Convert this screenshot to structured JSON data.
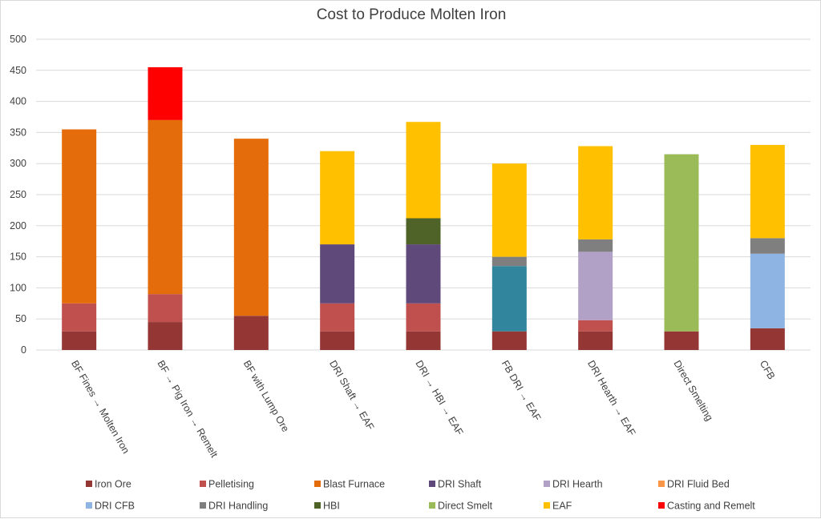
{
  "chart_data": {
    "type": "bar",
    "stacked": true,
    "title": "Cost to Produce Molten Iron",
    "xlabel": "",
    "ylabel": "",
    "ylim": [
      0,
      500
    ],
    "yticks": [
      0,
      50,
      100,
      150,
      200,
      250,
      300,
      350,
      400,
      450,
      500
    ],
    "grid": true,
    "legend_position": "bottom",
    "categories": [
      "BF Fines → Molten Iron",
      "BF → Pig Iron → Remelt",
      "BF with Lump Ore",
      "DRI Shaft → EAF",
      "DRI → HBI → EAF",
      "FB DRI → EAF",
      "DRI Hearth → EAF",
      "Direct Smelting",
      "CFB"
    ],
    "series": [
      {
        "name": "Iron Ore",
        "color": "#943634",
        "values": [
          30,
          45,
          55,
          30,
          30,
          30,
          30,
          30,
          35
        ]
      },
      {
        "name": "Pelletising",
        "color": "#C0504D",
        "values": [
          45,
          45,
          0,
          45,
          45,
          0,
          18,
          0,
          0
        ]
      },
      {
        "name": "Blast Furnace",
        "color": "#E46C0A",
        "values": [
          280,
          280,
          285,
          0,
          0,
          0,
          0,
          0,
          0
        ]
      },
      {
        "name": "DRI Shaft",
        "color": "#5F497A",
        "values": [
          0,
          0,
          0,
          95,
          95,
          0,
          0,
          0,
          0
        ]
      },
      {
        "name": "DRI Hearth",
        "color": "#B2A1C7",
        "values": [
          0,
          0,
          0,
          0,
          0,
          0,
          110,
          0,
          0
        ]
      },
      {
        "name": "DRI Fluid Bed",
        "color": "#31859C",
        "values": [
          0,
          0,
          0,
          0,
          0,
          105,
          0,
          0,
          0
        ]
      },
      {
        "name": "DRI CFB",
        "color": "#8EB4E3",
        "values": [
          0,
          0,
          0,
          0,
          0,
          0,
          0,
          0,
          120
        ]
      },
      {
        "name": "DRI Handling",
        "color": "#7F7F7F",
        "values": [
          0,
          0,
          0,
          0,
          0,
          15,
          20,
          0,
          25
        ]
      },
      {
        "name": "HBI",
        "color": "#4F6228",
        "values": [
          0,
          0,
          0,
          0,
          42,
          0,
          0,
          0,
          0
        ]
      },
      {
        "name": "Direct Smelt",
        "color": "#9BBB59",
        "values": [
          0,
          0,
          0,
          0,
          0,
          0,
          0,
          285,
          0
        ]
      },
      {
        "name": "EAF",
        "color": "#FFC000",
        "values": [
          0,
          0,
          0,
          150,
          155,
          150,
          150,
          0,
          150
        ]
      },
      {
        "name": "Casting and Remelt",
        "color": "#FF0000",
        "values": [
          0,
          85,
          0,
          0,
          0,
          0,
          0,
          0,
          0
        ]
      }
    ],
    "legend_display": {
      "colors": [
        "#943634",
        "#C0504D",
        "#E46C0A",
        "#5F497A",
        "#B2A1C7",
        "#F79646",
        "#8EB4E3",
        "#7F7F7F",
        "#4F6228",
        "#9BBB59",
        "#FFC000",
        "#FF0000"
      ]
    }
  }
}
